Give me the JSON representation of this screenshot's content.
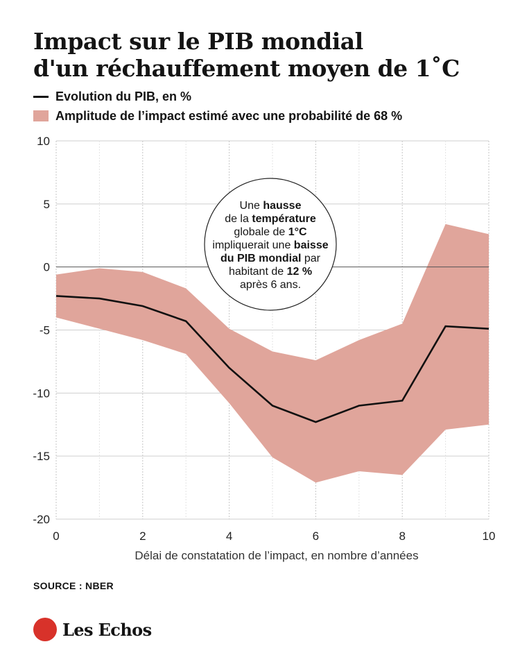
{
  "title": {
    "line1": "Impact sur le PIB mondial",
    "line2": "d'un réchauffement moyen de 1˚C"
  },
  "legend": {
    "line_label": "Evolution du PIB, en %",
    "band_label": "Amplitude de l’impact estimé avec une probabilité de 68 %"
  },
  "colors": {
    "line": "#111111",
    "band": "#e0a59b",
    "logo": "#d8322a"
  },
  "chart_data": {
    "type": "line",
    "x": [
      0,
      1,
      2,
      3,
      4,
      5,
      6,
      7,
      8,
      9,
      10
    ],
    "series": [
      {
        "name": "Evolution du PIB, en %",
        "values": [
          -2.3,
          -2.5,
          -3.1,
          -4.3,
          -8.0,
          -11.0,
          -12.3,
          -11.0,
          -10.6,
          -4.7,
          -4.9
        ]
      },
      {
        "name": "Amplitude de l’impact estimé avec une probabilité de 68 %",
        "lower": [
          -4.0,
          -4.9,
          -5.8,
          -6.9,
          -10.8,
          -15.1,
          -17.1,
          -16.2,
          -16.5,
          -12.9,
          -12.5
        ],
        "upper": [
          -0.6,
          -0.1,
          -0.4,
          -1.7,
          -4.9,
          -6.7,
          -7.4,
          -5.8,
          -4.5,
          3.4,
          2.6
        ]
      }
    ],
    "xlim": [
      0,
      10
    ],
    "ylim": [
      -20,
      10
    ],
    "xticks": [
      "0",
      "2",
      "4",
      "6",
      "8",
      "10"
    ],
    "yticks": [
      "10",
      "5",
      "0",
      "-5",
      "-10",
      "-15",
      "-20"
    ],
    "xlabel": "Délai de constatation de l’impact, en nombre d’années",
    "ylabel": "",
    "grid": true,
    "annotation": {
      "lines": [
        [
          {
            "t": "Une ",
            "b": false
          },
          {
            "t": "hausse",
            "b": true
          }
        ],
        [
          {
            "t": "de la ",
            "b": false
          },
          {
            "t": "température",
            "b": true
          }
        ],
        [
          {
            "t": "globale de ",
            "b": false
          },
          {
            "t": "1°C",
            "b": true
          }
        ],
        [
          {
            "t": "impliquerait une ",
            "b": false
          },
          {
            "t": "baisse",
            "b": true
          }
        ],
        [
          {
            "t": "du PIB mondial",
            "b": true
          },
          {
            "t": " par",
            "b": false
          }
        ],
        [
          {
            "t": "habitant de ",
            "b": false
          },
          {
            "t": "12 %",
            "b": true
          }
        ],
        [
          {
            "t": "après 6 ans.",
            "b": false
          }
        ]
      ]
    }
  },
  "source": "SOURCE : NBER",
  "brand": {
    "icon": "les-echos-logo-icon",
    "name": "Les Echos"
  }
}
